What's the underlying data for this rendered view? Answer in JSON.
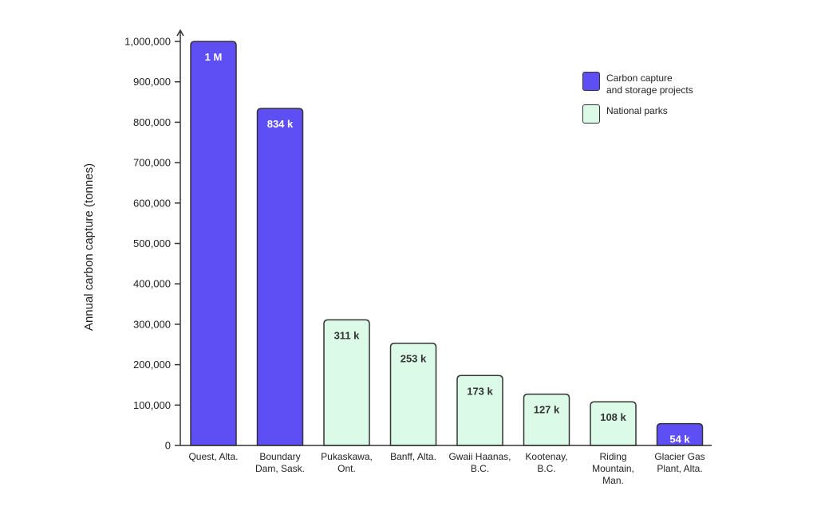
{
  "chart_data": {
    "type": "bar",
    "ylabel": "Annual carbon capture (tonnes)",
    "xlabel": "",
    "ylim": [
      0,
      1000000
    ],
    "yticks": [
      0,
      100000,
      200000,
      300000,
      400000,
      500000,
      600000,
      700000,
      800000,
      900000,
      1000000
    ],
    "ytick_labels": [
      "0",
      "100,000",
      "200,000",
      "300,000",
      "400,000",
      "500,000",
      "600,000",
      "700,000",
      "800,000",
      "900,000",
      "1,000,000"
    ],
    "grid": false,
    "legend_placement": "top-right",
    "colors": {
      "ccs": "#5e4ff5",
      "park": "#dcfae8",
      "outline": "#333333"
    },
    "categories": [
      [
        "Quest, Alta."
      ],
      [
        "Boundary",
        "Dam, Sask."
      ],
      [
        "Pukaskawa,",
        "Ont."
      ],
      [
        "Banff, Alta."
      ],
      [
        "Gwaii Haanas,",
        "B.C."
      ],
      [
        "Kootenay,",
        "B.C."
      ],
      [
        "Riding",
        "Mountain,",
        "Man."
      ],
      [
        "Glacier Gas",
        "Plant, Alta."
      ]
    ],
    "values": [
      1000000,
      834000,
      311000,
      253000,
      173000,
      127000,
      108000,
      54000
    ],
    "data_labels": [
      "1 M",
      "834 k",
      "311 k",
      "253 k",
      "173 k",
      "127 k",
      "108 k",
      "54 k"
    ],
    "groups": [
      "ccs",
      "ccs",
      "park",
      "park",
      "park",
      "park",
      "park",
      "ccs"
    ],
    "legend": [
      {
        "key": "ccs",
        "label": "Carbon capture\nand storage projects"
      },
      {
        "key": "park",
        "label": "National parks"
      }
    ]
  }
}
